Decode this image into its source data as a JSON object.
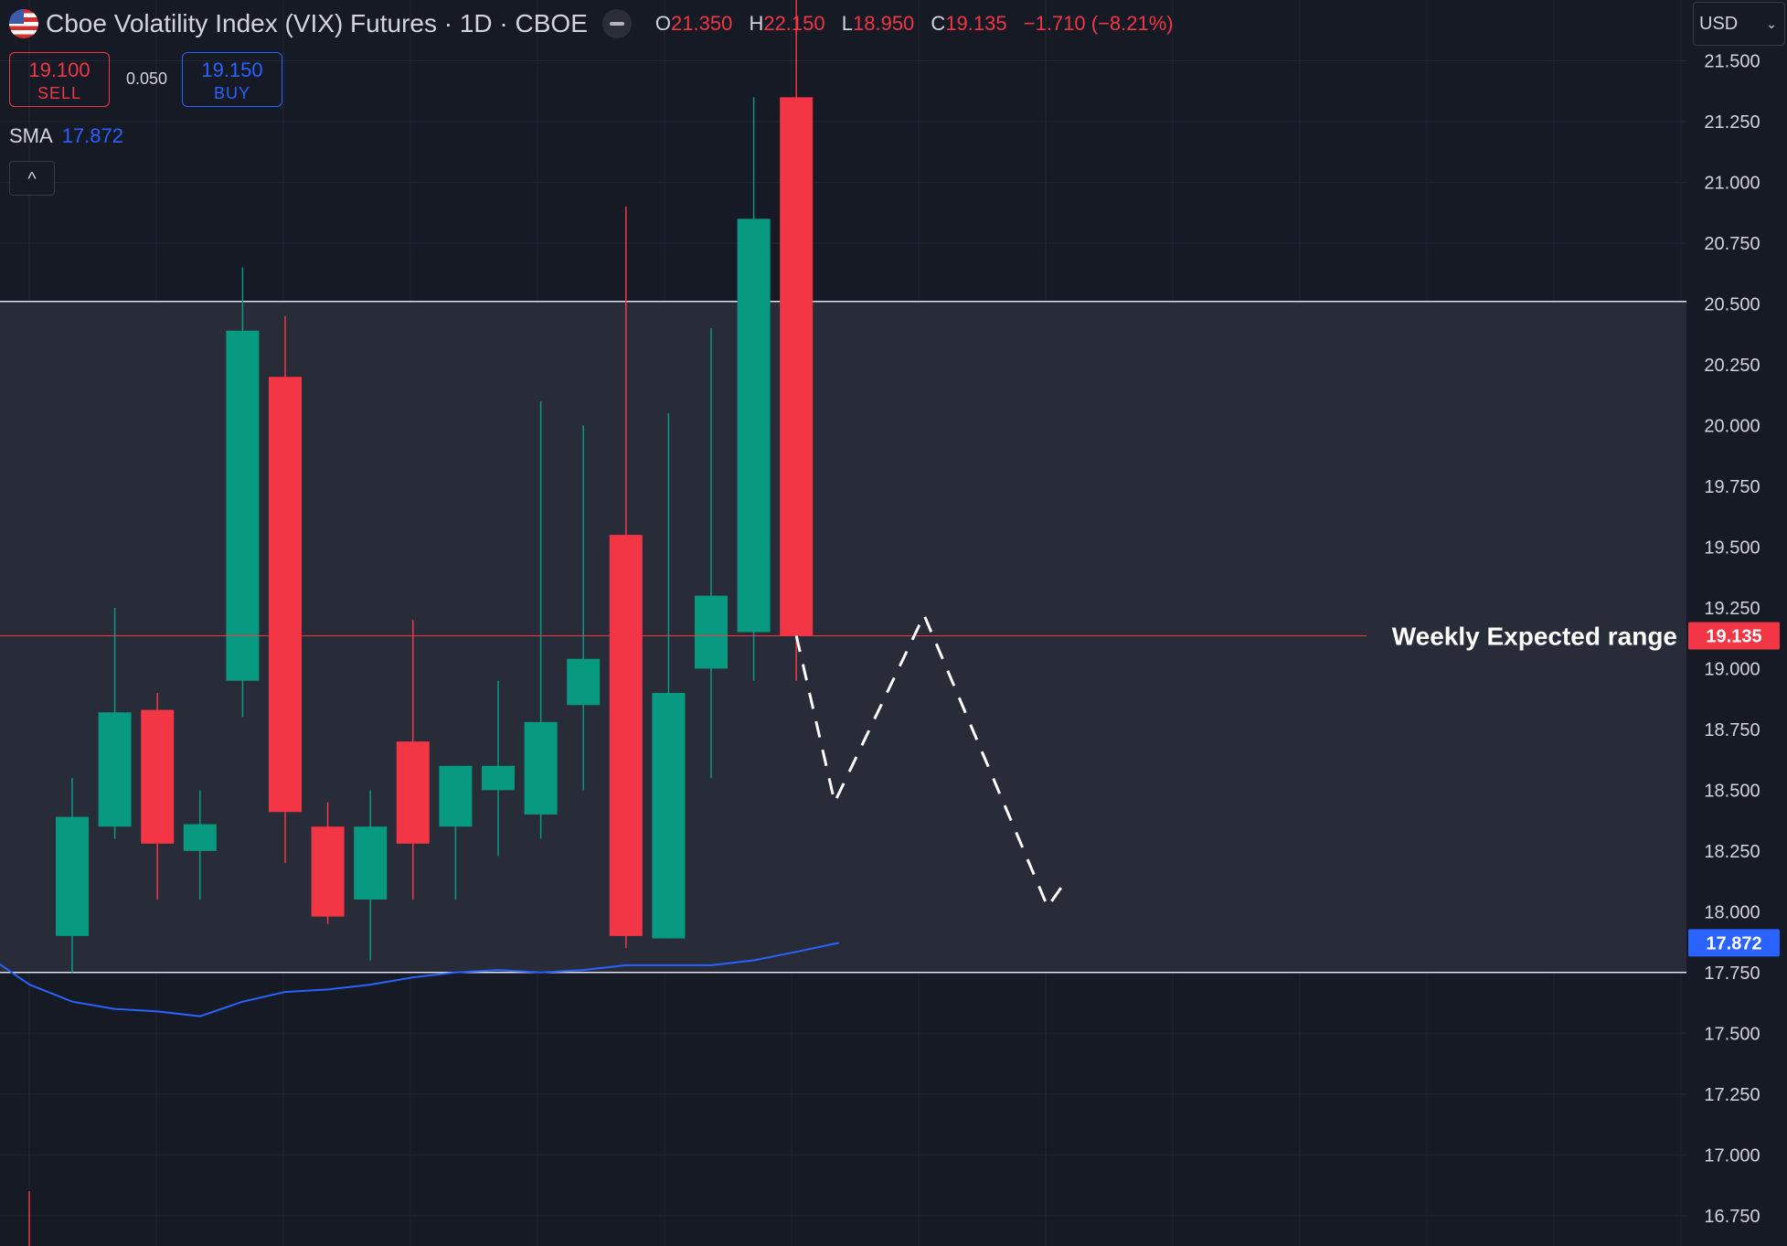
{
  "header": {
    "title": "Cboe Volatility Index (VIX) Futures · 1D · CBOE",
    "ohlc": {
      "o_label": "O",
      "o": "21.350",
      "h_label": "H",
      "h": "22.150",
      "l_label": "L",
      "l": "18.950",
      "c_label": "C",
      "c": "19.135",
      "change": "−1.710 (−8.21%)"
    }
  },
  "trade": {
    "sell_price": "19.100",
    "sell_label": "SELL",
    "spread": "0.050",
    "buy_price": "19.150",
    "buy_label": "BUY"
  },
  "indicator": {
    "name": "SMA",
    "value": "17.872"
  },
  "collapse_icon": "chevron-up-icon",
  "currency": "USD",
  "colors": {
    "up": "#089981",
    "down": "#f23645",
    "sma": "#2962ff",
    "background": "#161a25",
    "range_fill": "#2a2e39"
  },
  "chart_data": {
    "type": "candlestick",
    "ylim": [
      16.625,
      21.75
    ],
    "y_ticks": [
      "16.750",
      "17.000",
      "17.250",
      "17.500",
      "17.750",
      "18.000",
      "18.250",
      "18.500",
      "18.750",
      "19.000",
      "19.250",
      "19.500",
      "19.750",
      "20.000",
      "20.250",
      "20.500",
      "20.750",
      "21.000",
      "21.250",
      "21.500"
    ],
    "candles": [
      {
        "o": 17.9,
        "h": 18.55,
        "l": 17.75,
        "c": 18.39
      },
      {
        "o": 18.35,
        "h": 19.25,
        "l": 18.3,
        "c": 18.82
      },
      {
        "o": 18.83,
        "h": 18.9,
        "l": 18.05,
        "c": 18.28
      },
      {
        "o": 18.25,
        "h": 18.5,
        "l": 18.05,
        "c": 18.36
      },
      {
        "o": 18.95,
        "h": 20.65,
        "l": 18.8,
        "c": 20.39
      },
      {
        "o": 20.2,
        "h": 20.45,
        "l": 18.2,
        "c": 18.41
      },
      {
        "o": 18.35,
        "h": 18.45,
        "l": 17.95,
        "c": 17.98
      },
      {
        "o": 18.05,
        "h": 18.5,
        "l": 17.8,
        "c": 18.35
      },
      {
        "o": 18.7,
        "h": 19.2,
        "l": 18.05,
        "c": 18.28
      },
      {
        "o": 18.35,
        "h": 18.6,
        "l": 18.05,
        "c": 18.6
      },
      {
        "o": 18.5,
        "h": 18.95,
        "l": 18.23,
        "c": 18.6
      },
      {
        "o": 18.4,
        "h": 20.1,
        "l": 18.3,
        "c": 18.78
      },
      {
        "o": 18.85,
        "h": 20.0,
        "l": 18.5,
        "c": 19.04
      },
      {
        "o": 19.55,
        "h": 20.9,
        "l": 17.85,
        "c": 17.9
      },
      {
        "o": 17.89,
        "h": 20.05,
        "l": 17.89,
        "c": 18.9
      },
      {
        "o": 19.0,
        "h": 20.4,
        "l": 18.55,
        "c": 19.3
      },
      {
        "o": 19.15,
        "h": 21.35,
        "l": 18.95,
        "c": 20.85
      },
      {
        "o": 21.35,
        "h": 22.15,
        "l": 18.95,
        "c": 19.135
      }
    ],
    "sma": [
      17.82,
      17.7,
      17.63,
      17.6,
      17.59,
      17.57,
      17.63,
      17.67,
      17.68,
      17.7,
      17.73,
      17.75,
      17.76,
      17.75,
      17.76,
      17.78,
      17.78,
      17.78,
      17.8,
      17.835,
      17.872
    ],
    "expected_range": {
      "low": 17.75,
      "high": 20.51
    },
    "current_price": "19.135",
    "sma_last": "17.872",
    "annotation": "Weekly Expected range",
    "projection": [
      {
        "i": 17.0,
        "y": 19.135
      },
      {
        "i": 17.9,
        "y": 18.45
      },
      {
        "i": 20.0,
        "y": 19.22
      },
      {
        "i": 22.9,
        "y": 18.02
      },
      {
        "i": 23.3,
        "y": 18.12
      }
    ]
  }
}
